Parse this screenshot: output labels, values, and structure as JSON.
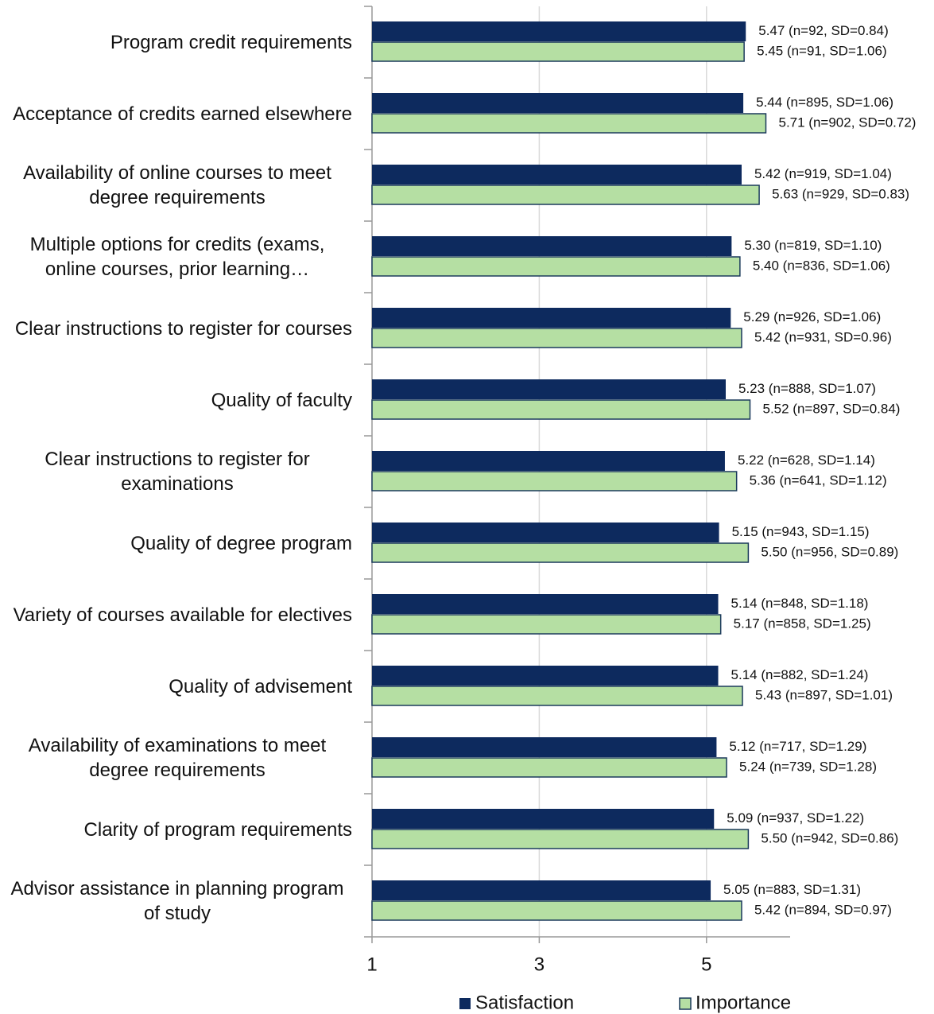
{
  "chart_data": {
    "type": "barh",
    "categories": [
      "Program credit requirements",
      "Acceptance of credits earned elsewhere",
      "Availability of online courses to meet degree requirements",
      "Multiple options for credits (exams, online courses, prior learning…",
      "Clear instructions to register for courses",
      "Quality of faculty",
      "Clear instructions to register for examinations",
      "Quality of degree program",
      "Variety of courses available for electives",
      "Quality of advisement",
      "Availability of examinations to meet degree requirements",
      "Clarity of program requirements",
      "Advisor assistance in planning program of study"
    ],
    "series": [
      {
        "name": "Satisfaction",
        "color": "#0d2a5e",
        "values": [
          5.47,
          5.44,
          5.42,
          5.3,
          5.29,
          5.23,
          5.22,
          5.15,
          5.14,
          5.14,
          5.12,
          5.09,
          5.05
        ],
        "value_labels": [
          "5.47 (n=92, SD=0.84)",
          "5.44 (n=895, SD=1.06)",
          "5.42 (n=919, SD=1.04)",
          "5.30 (n=819, SD=1.10)",
          "5.29 (n=926, SD=1.06)",
          "5.23 (n=888, SD=1.07)",
          "5.22 (n=628, SD=1.14)",
          "5.15 (n=943, SD=1.15)",
          "5.14 (n=848, SD=1.18)",
          "5.14 (n=882, SD=1.24)",
          "5.12 (n=717, SD=1.29)",
          "5.09 (n=937, SD=1.22)",
          "5.05 (n=883, SD=1.31)"
        ]
      },
      {
        "name": "Importance",
        "color": "#b5dfa3",
        "values": [
          5.45,
          5.71,
          5.63,
          5.4,
          5.42,
          5.52,
          5.36,
          5.5,
          5.17,
          5.43,
          5.24,
          5.5,
          5.42
        ],
        "value_labels": [
          "5.45 (n=91, SD=1.06)",
          "5.71 (n=902, SD=0.72)",
          "5.63 (n=929, SD=0.83)",
          "5.40 (n=836, SD=1.06)",
          "5.42 (n=931, SD=0.96)",
          "5.52 (n=897, SD=0.84)",
          "5.36 (n=641, SD=1.12)",
          "5.50 (n=956, SD=0.89)",
          "5.17 (n=858, SD=1.25)",
          "5.43 (n=897, SD=1.01)",
          "5.24 (n=739, SD=1.28)",
          "5.50 (n=942, SD=0.86)",
          "5.42 (n=894, SD=0.97)"
        ]
      }
    ],
    "xlim": [
      1,
      6
    ],
    "xticks": [
      1,
      3,
      5
    ],
    "grid": true,
    "legend": "bottom"
  }
}
